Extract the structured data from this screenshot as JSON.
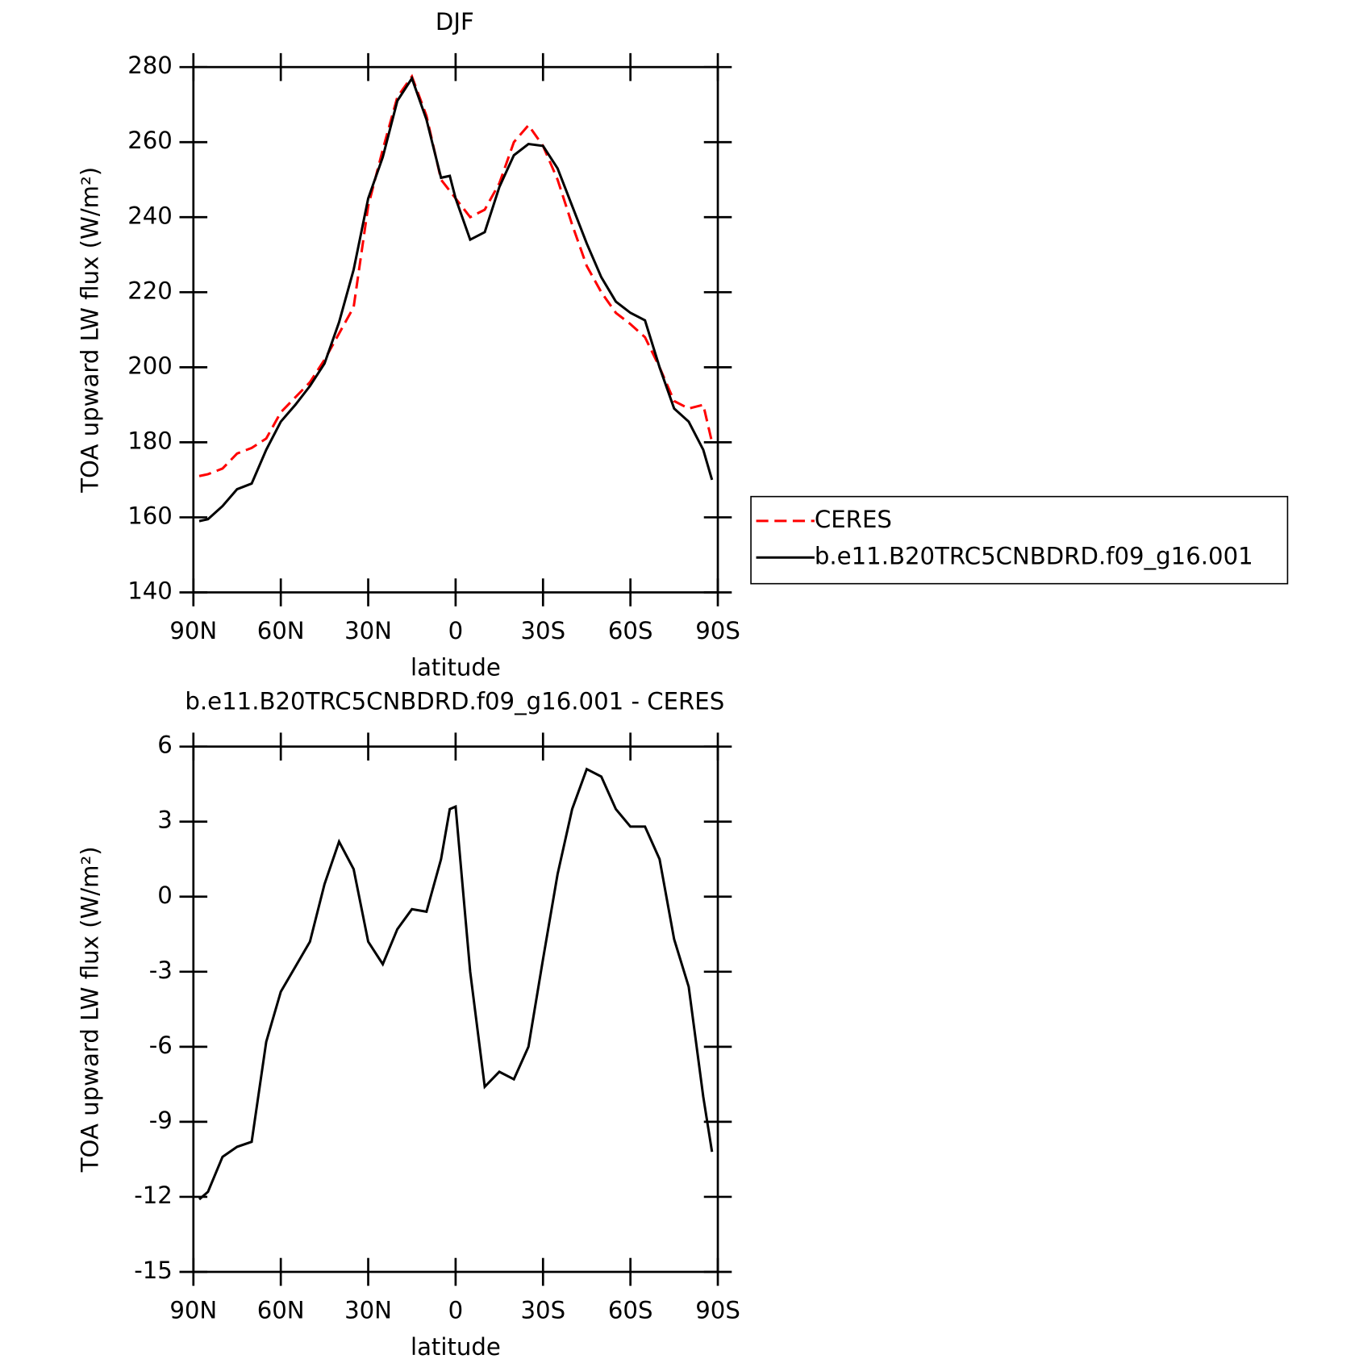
{
  "chart_data": [
    {
      "type": "line",
      "title": "DJF",
      "xlabel": "latitude",
      "ylabel": "TOA upward LW flux (W/m²)",
      "x": [
        88,
        85,
        80,
        75,
        70,
        65,
        60,
        55,
        50,
        45,
        40,
        35,
        30,
        25,
        20,
        15,
        10,
        5,
        2,
        0,
        -5,
        -10,
        -15,
        -20,
        -25,
        -30,
        -35,
        -40,
        -45,
        -50,
        -55,
        -60,
        -65,
        -70,
        -75,
        -80,
        -85,
        -88
      ],
      "series": [
        {
          "name": "CERES",
          "color": "#ff0000",
          "dashed": true,
          "values": [
            171,
            171.5,
            173,
            177,
            178.5,
            181,
            188,
            192,
            196,
            202,
            209,
            216,
            243,
            258,
            272,
            277.5,
            267,
            250,
            247,
            245,
            240,
            242,
            249,
            260,
            264.5,
            259,
            250,
            238,
            227,
            220,
            214.5,
            211.5,
            208,
            200,
            191,
            189,
            190,
            180
          ]
        },
        {
          "name": "b.e11.B20TRC5CNBDRD.f09_g16.001",
          "color": "#000000",
          "dashed": false,
          "values": [
            159,
            159.5,
            163,
            167.5,
            169,
            178,
            185.5,
            190,
            195,
            201,
            212,
            226,
            245,
            256,
            271,
            277,
            266,
            250.5,
            251,
            245,
            234,
            236,
            248,
            256.5,
            259.5,
            259,
            253,
            243,
            233,
            224,
            217.5,
            214.5,
            212.5,
            200,
            189,
            185.5,
            178,
            170
          ]
        }
      ],
      "xlim": [
        90,
        -90
      ],
      "xticks": [
        {
          "value": 90,
          "label": "90N"
        },
        {
          "value": 60,
          "label": "60N"
        },
        {
          "value": 30,
          "label": "30N"
        },
        0,
        {
          "value": -30,
          "label": "30S"
        },
        {
          "value": -60,
          "label": "60S"
        },
        {
          "value": -90,
          "label": "90S"
        }
      ],
      "ylim": [
        140,
        280
      ],
      "yticks": [
        140,
        160,
        180,
        200,
        220,
        240,
        260,
        280
      ],
      "grid": false,
      "legend": "right"
    },
    {
      "type": "line",
      "title": "b.e11.B20TRC5CNBDRD.f09_g16.001 - CERES",
      "xlabel": "latitude",
      "ylabel": "TOA upward LW flux (W/m²)",
      "x": [
        88,
        85,
        80,
        75,
        70,
        65,
        60,
        55,
        50,
        45,
        40,
        35,
        30,
        25,
        20,
        15,
        10,
        5,
        2,
        0,
        -5,
        -10,
        -15,
        -20,
        -25,
        -30,
        -35,
        -40,
        -45,
        -50,
        -55,
        -60,
        -65,
        -70,
        -75,
        -80,
        -85,
        -88
      ],
      "series": [
        {
          "color": "#000000",
          "dashed": false,
          "values": [
            -12.1,
            -11.8,
            -10.4,
            -10,
            -9.8,
            -5.8,
            -3.8,
            -2.8,
            -1.8,
            0.5,
            2.2,
            1.1,
            -1.8,
            -2.7,
            -1.3,
            -0.5,
            -0.6,
            1.5,
            3.5,
            3.6,
            -3,
            -7.6,
            -7,
            -7.3,
            -6,
            -2.5,
            0.9,
            3.5,
            5.1,
            4.8,
            3.5,
            2.8,
            2.8,
            1.5,
            -1.7,
            -3.6,
            -8,
            -10.2
          ]
        }
      ],
      "xlim": [
        90,
        -90
      ],
      "xticks": [
        {
          "value": 90,
          "label": "90N"
        },
        {
          "value": 60,
          "label": "60N"
        },
        {
          "value": 30,
          "label": "30N"
        },
        0,
        {
          "value": -30,
          "label": "30S"
        },
        {
          "value": -60,
          "label": "60S"
        },
        {
          "value": -90,
          "label": "90S"
        }
      ],
      "ylim": [
        -15,
        6
      ],
      "yticks": [
        -15,
        -12,
        -9,
        -6,
        -3,
        0,
        3,
        6
      ],
      "grid": false
    }
  ]
}
